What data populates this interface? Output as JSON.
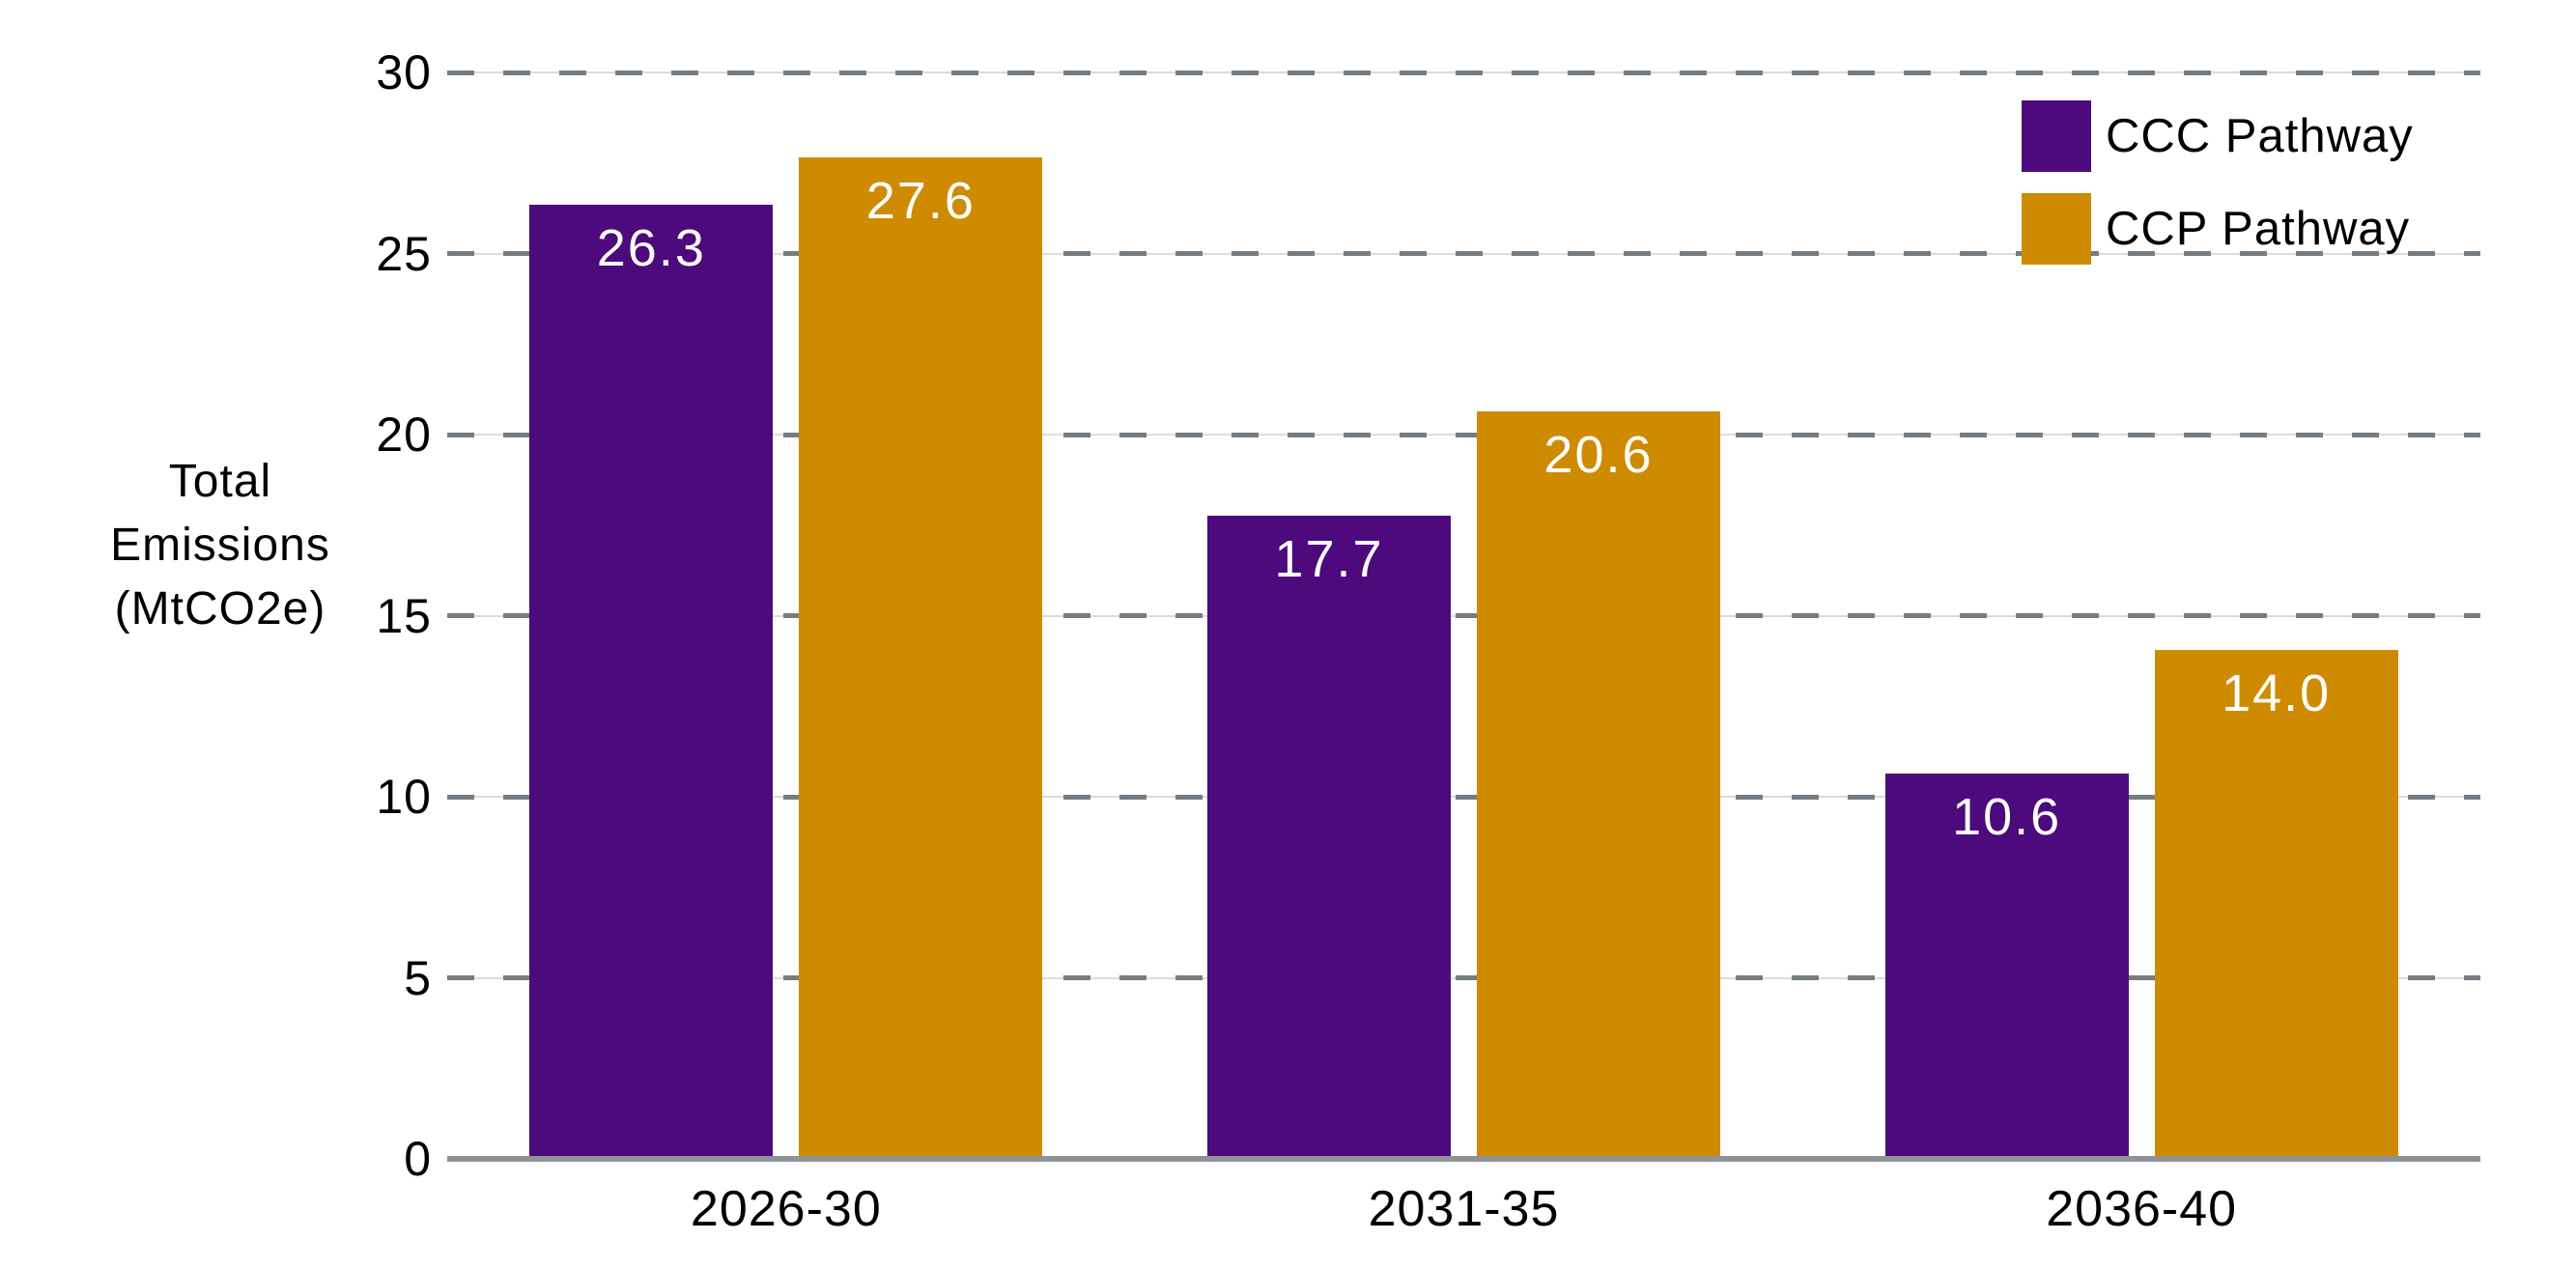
{
  "chart_data": {
    "type": "bar",
    "title": "",
    "categories": [
      "2026-30",
      "2031-35",
      "2036-40"
    ],
    "series": [
      {
        "name": "CCC Pathway",
        "color": "#4C0A7D",
        "values": [
          26.3,
          17.7,
          10.6
        ]
      },
      {
        "name": "CCP Pathway",
        "color": "#CE8B00",
        "values": [
          27.6,
          20.6,
          14.0
        ]
      }
    ],
    "value_labels": [
      [
        "26.3",
        "17.7",
        "10.6"
      ],
      [
        "27.6",
        "20.6",
        "14.0"
      ]
    ],
    "ylabel": "Total Emissions (MtCO2e)",
    "ylabel_lines": [
      "Total",
      "Emissions",
      "(MtCO2e)"
    ],
    "ylim": [
      0,
      30
    ],
    "ytick_step": 5,
    "yticks": [
      0,
      5,
      10,
      15,
      20,
      25,
      30
    ],
    "xlabel": "",
    "grid": "dashed-horizontal",
    "legend_position": "top-right",
    "legend": [
      "CCC Pathway",
      "CCP Pathway"
    ]
  },
  "style": {
    "background": "#FFFFFF",
    "bar_label_color": "#FFFFFF",
    "grid_dash_color": "#757D83",
    "grid_base_color": "#DADCDE",
    "axis_line_color": "#8D9296",
    "text_color": "#000000"
  }
}
